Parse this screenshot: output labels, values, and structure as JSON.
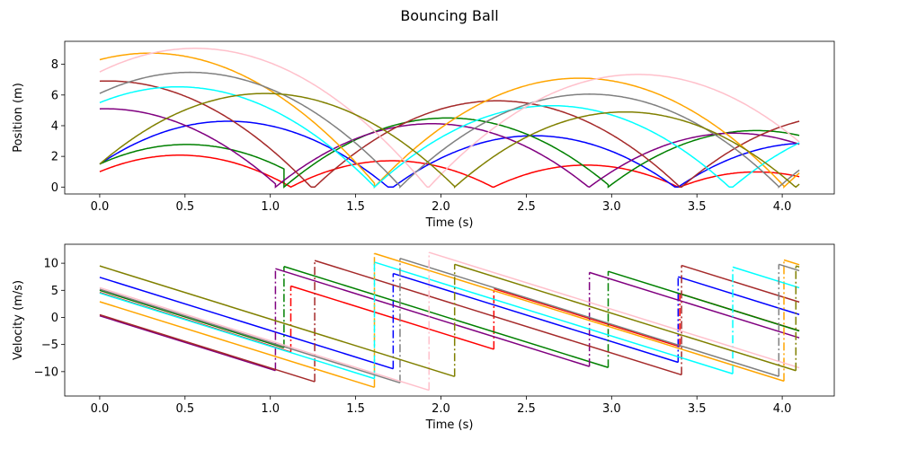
{
  "figure": {
    "title": "Bouncing Ball"
  },
  "chart_data": [
    {
      "type": "line",
      "xlabel": "Time (s)",
      "ylabel": "Position (m)",
      "xlim": [
        -0.205,
        4.305
      ],
      "ylim": [
        -0.45,
        9.5
      ],
      "xticks": [
        0.0,
        0.5,
        1.0,
        1.5,
        2.0,
        2.5,
        3.0,
        3.5,
        4.0
      ],
      "xtick_labels": [
        "0.0",
        "0.5",
        "1.0",
        "1.5",
        "2.0",
        "2.5",
        "3.0",
        "3.5",
        "4.0"
      ],
      "yticks": [
        0,
        2,
        4,
        6,
        8
      ],
      "ytick_labels": [
        "0",
        "2",
        "4",
        "6",
        "8"
      ],
      "grid": false,
      "series": [
        {
          "color": "#ff0000",
          "t_end": 4.1,
          "g": 9.81,
          "y0": 1.0,
          "v0": 4.6,
          "bounces": [
            [
              1.12,
              5.8
            ],
            [
              2.31,
              5.3
            ],
            [
              3.4,
              4.4
            ]
          ]
        },
        {
          "color": "#0000ff",
          "t_end": 4.1,
          "g": 9.81,
          "y0": 1.5,
          "v0": 7.4,
          "bounces": [
            [
              1.72,
              8.1
            ],
            [
              3.39,
              7.5
            ]
          ]
        },
        {
          "color": "#008000",
          "t_end": 4.1,
          "g": 9.81,
          "y0": 1.5,
          "v0": 5.0,
          "bounces": [
            [
              1.08,
              9.4
            ],
            [
              2.98,
              8.5
            ]
          ]
        },
        {
          "color": "#800080",
          "t_end": 4.1,
          "g": 9.81,
          "y0": 5.1,
          "v0": 0.3,
          "bounces": [
            [
              1.03,
              9.0
            ],
            [
              2.87,
              8.3
            ]
          ]
        },
        {
          "color": "#a52a2a",
          "t_end": 4.1,
          "g": 9.81,
          "y0": 6.9,
          "v0": 0.5,
          "bounces": [
            [
              1.26,
              10.5
            ],
            [
              3.41,
              9.6
            ]
          ]
        },
        {
          "color": "#ffa500",
          "t_end": 4.1,
          "g": 9.81,
          "y0": 8.3,
          "v0": 2.9,
          "bounces": [
            [
              1.61,
              11.8
            ],
            [
              4.01,
              10.6
            ]
          ]
        },
        {
          "color": "#00ffff",
          "t_end": 4.1,
          "g": 9.81,
          "y0": 5.5,
          "v0": 4.5,
          "bounces": [
            [
              1.61,
              10.2
            ],
            [
              3.71,
              9.3
            ]
          ]
        },
        {
          "color": "#808080",
          "t_end": 4.1,
          "g": 9.81,
          "y0": 6.1,
          "v0": 5.2,
          "bounces": [
            [
              1.76,
              10.9
            ],
            [
              3.98,
              9.8
            ]
          ]
        },
        {
          "color": "#ffc0cb",
          "t_end": 4.1,
          "g": 9.81,
          "y0": 7.5,
          "v0": 5.5,
          "bounces": [
            [
              1.93,
              12.0
            ]
          ]
        },
        {
          "color": "#808000",
          "t_end": 4.1,
          "g": 9.81,
          "y0": 1.5,
          "v0": 9.5,
          "bounces": [
            [
              2.08,
              9.8
            ],
            [
              4.08,
              9.5
            ]
          ]
        }
      ]
    },
    {
      "type": "line",
      "xlabel": "Time (s)",
      "ylabel": "Velocity (m/s)",
      "xlim": [
        -0.205,
        4.305
      ],
      "ylim": [
        -14.5,
        13.5
      ],
      "xticks": [
        0.0,
        0.5,
        1.0,
        1.5,
        2.0,
        2.5,
        3.0,
        3.5,
        4.0
      ],
      "xtick_labels": [
        "0.0",
        "0.5",
        "1.0",
        "1.5",
        "2.0",
        "2.5",
        "3.0",
        "3.5",
        "4.0"
      ],
      "yticks": [
        10,
        5,
        0,
        -5,
        -10
      ],
      "ytick_labels": [
        "10",
        "5",
        "0",
        "−5",
        "−10"
      ],
      "grid": false,
      "derived_from": "velocity of the position series; dash-dot segments mark each bounce"
    }
  ]
}
